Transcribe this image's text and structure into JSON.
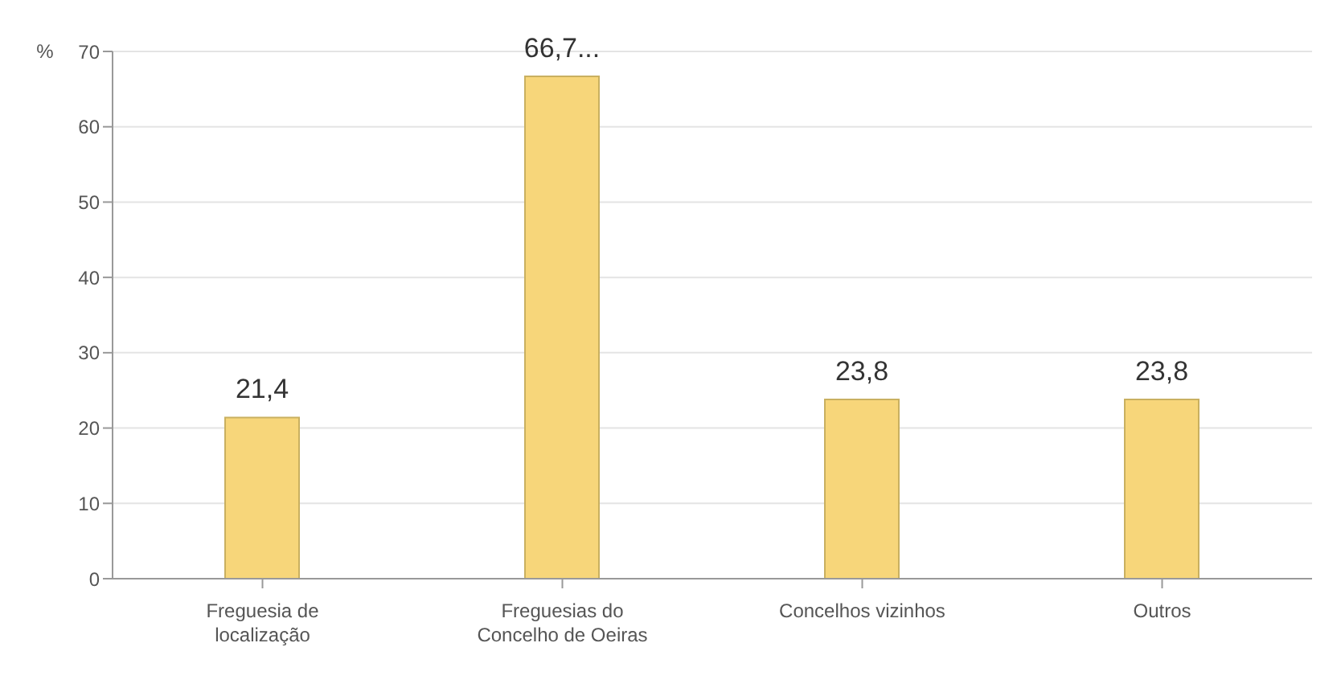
{
  "chart_data": {
    "type": "bar",
    "ylabel": "%",
    "categories": [
      "Freguesia de localização",
      "Freguesias do Concelho de Oeiras",
      "Concelhos vizinhos",
      "Outros"
    ],
    "values": [
      21.4,
      66.7,
      23.8,
      23.8
    ],
    "value_labels": [
      "21,4",
      "66,7...",
      "23,8",
      "23,8"
    ],
    "color": "#f7d67a",
    "ylim": [
      0,
      70
    ],
    "yticks": [
      0,
      10,
      20,
      30,
      40,
      50,
      60,
      70
    ],
    "grid": "y"
  }
}
